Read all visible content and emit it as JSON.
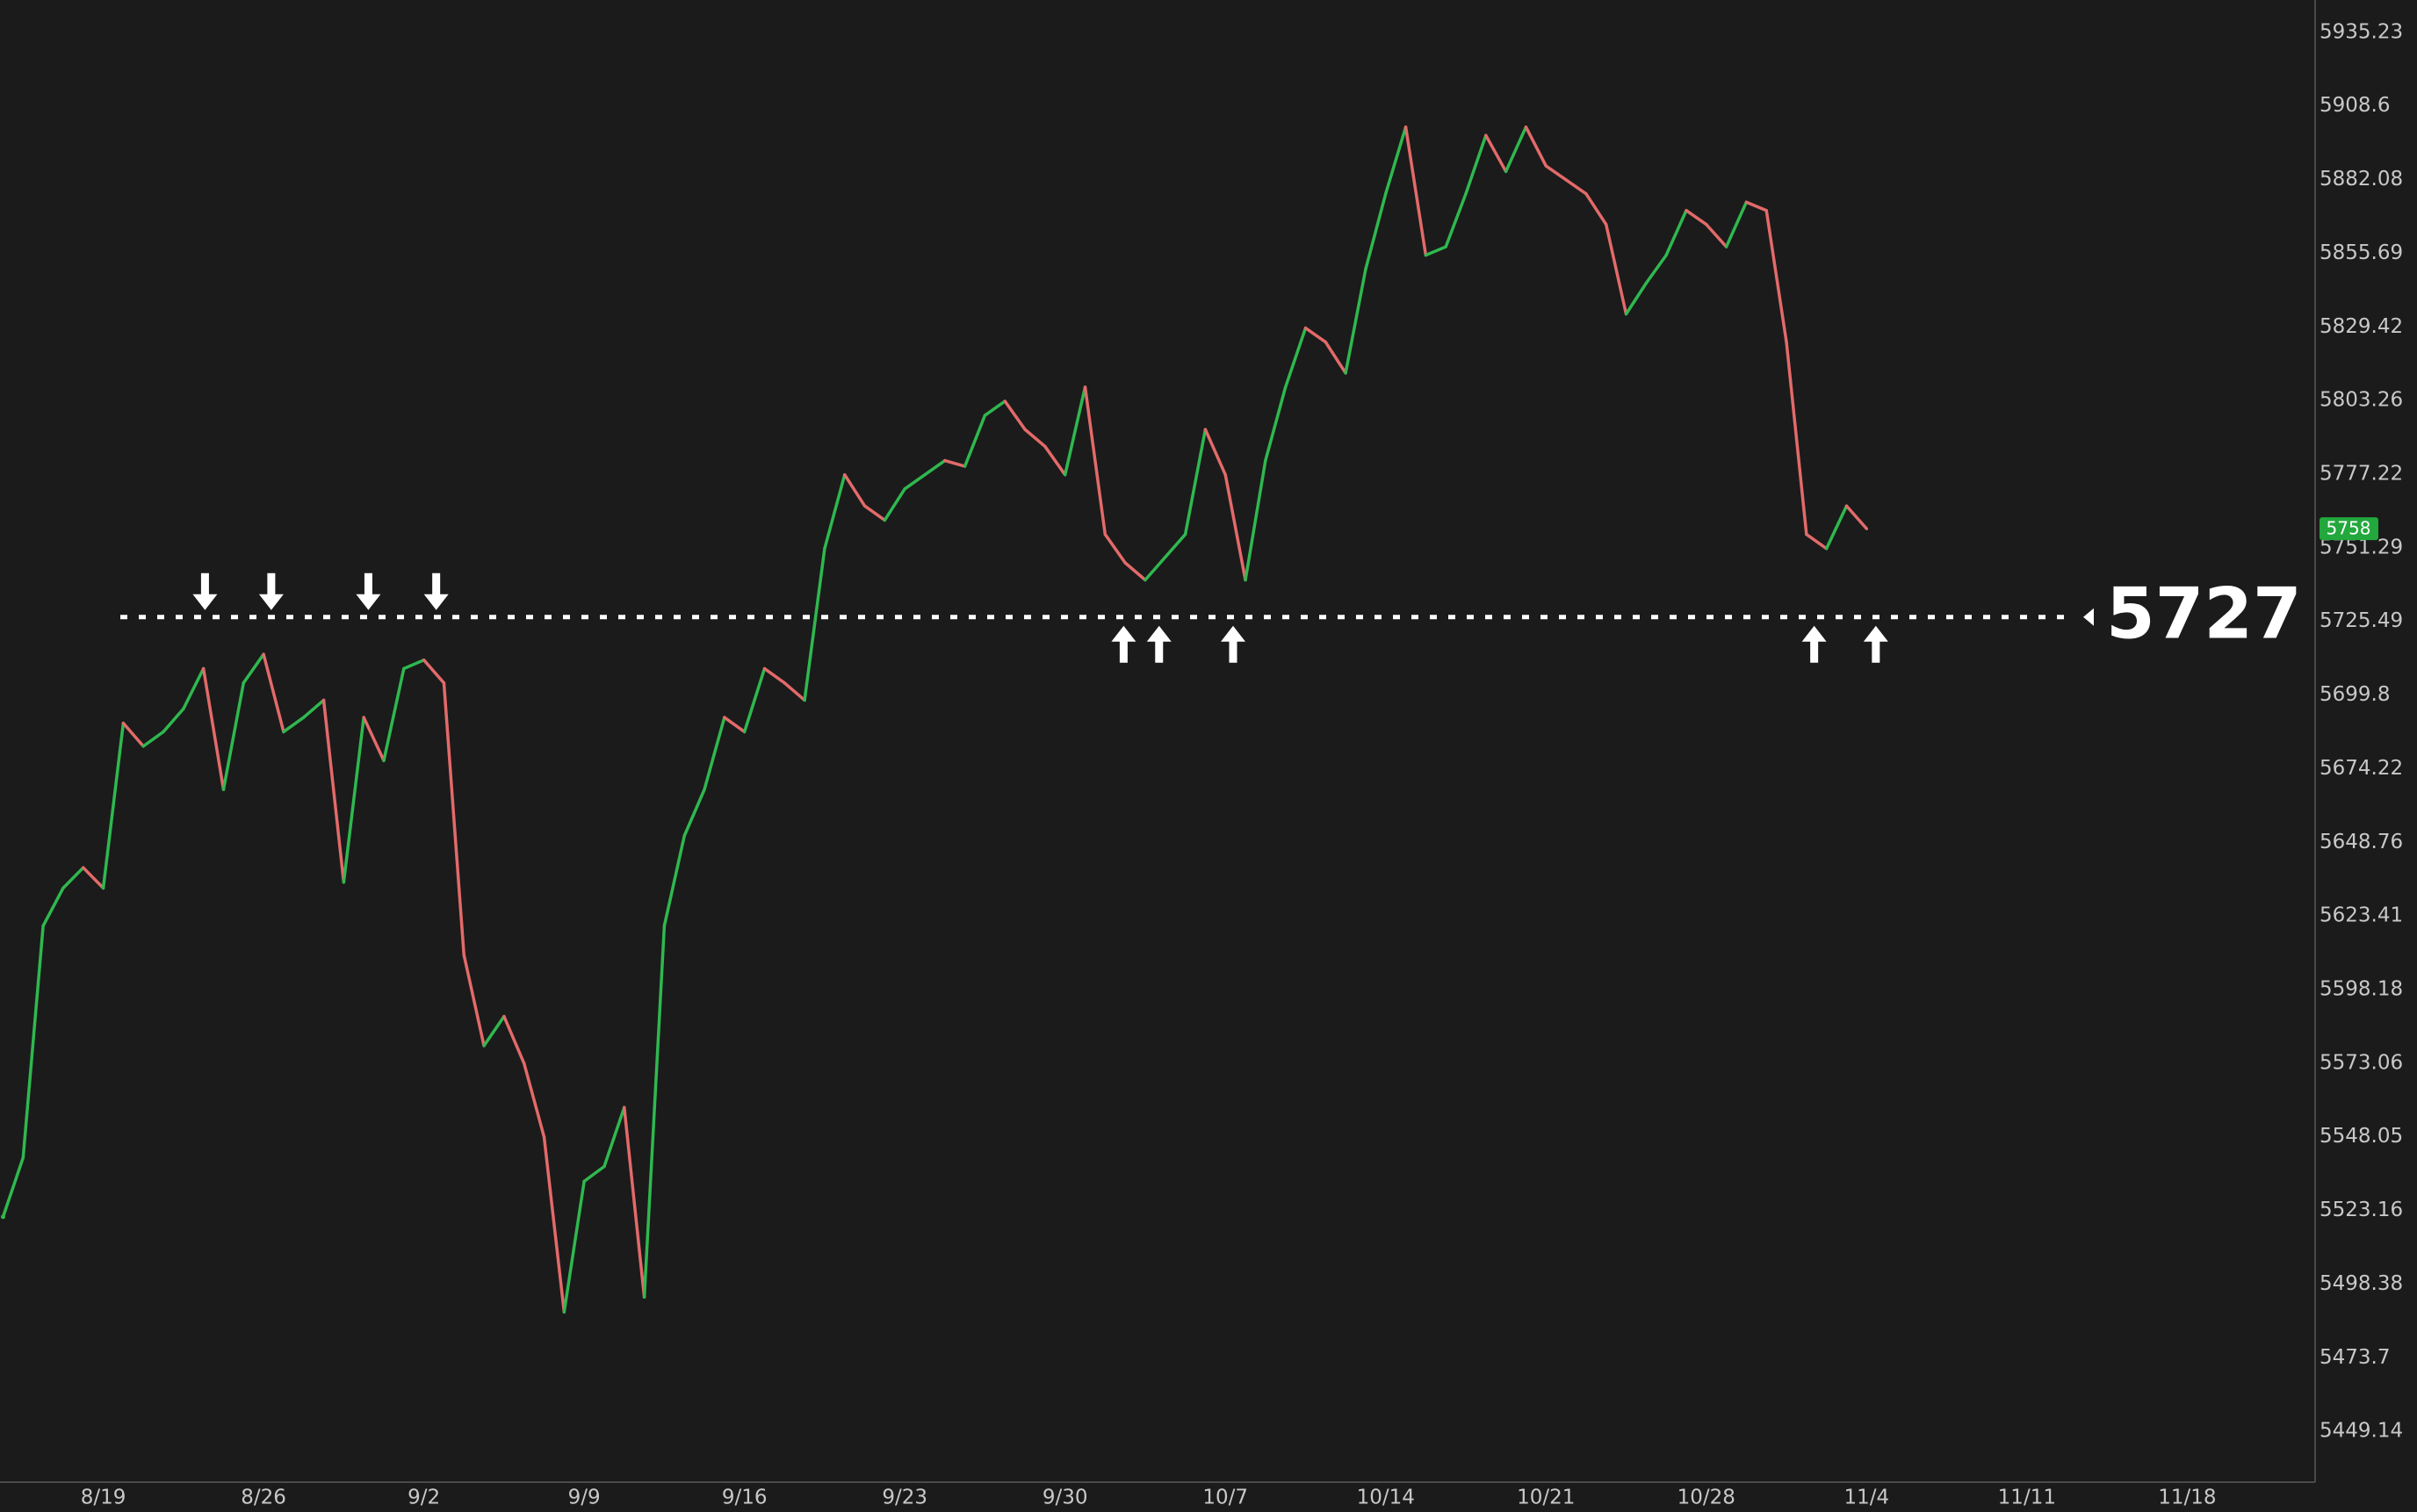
{
  "chart_data": {
    "type": "line",
    "categories": [
      null,
      null,
      null,
      null,
      null,
      "8/19",
      null,
      null,
      null,
      null,
      null,
      null,
      null,
      "8/26",
      null,
      null,
      null,
      null,
      null,
      null,
      null,
      "9/2",
      null,
      null,
      null,
      null,
      null,
      null,
      null,
      "9/9",
      null,
      null,
      null,
      null,
      null,
      null,
      null,
      "9/16",
      null,
      null,
      null,
      null,
      null,
      null,
      null,
      "9/23",
      null,
      null,
      null,
      null,
      null,
      null,
      null,
      "9/30",
      null,
      null,
      null,
      null,
      null,
      null,
      null,
      "10/7",
      null,
      null,
      null,
      null,
      null,
      null,
      null,
      "10/14",
      null,
      null,
      null,
      null,
      null,
      null,
      null,
      "10/21",
      null,
      null,
      null,
      null,
      null,
      null,
      null,
      "10/28",
      null,
      null,
      null,
      null,
      null,
      null,
      null,
      "11/4",
      null,
      null,
      null,
      null,
      null,
      null,
      null,
      "11/11",
      null,
      null,
      null,
      null,
      null,
      null,
      null,
      "11/18",
      null,
      null,
      null,
      null,
      null
    ],
    "values": [
      5521,
      5541,
      5620,
      5633,
      5640,
      5633,
      5690,
      5682,
      5687,
      5695,
      5709,
      5667,
      5704,
      5714,
      5687,
      5692,
      5698,
      5635,
      5692,
      5677,
      5709,
      5712,
      5704,
      5610,
      5579,
      5589,
      5573,
      5548,
      5489,
      5533,
      5538,
      5558,
      5494,
      5620,
      5651,
      5667,
      5692,
      5687,
      5709,
      5704,
      5698,
      5751,
      5777,
      5766,
      5761,
      5772,
      5777,
      5782,
      5780,
      5798,
      5803,
      5793,
      5787,
      5777,
      5808,
      5756,
      5746,
      5740,
      5748,
      5756,
      5793,
      5777,
      5740,
      5782,
      5808,
      5829,
      5824,
      5813,
      5850,
      5877,
      5901,
      5855,
      5858,
      5877,
      5898,
      5885,
      5901,
      5887,
      5882,
      5877,
      5866,
      5834,
      5845,
      5855,
      5871,
      5866,
      5858,
      5874,
      5871,
      5824,
      5756,
      5751,
      5766,
      5758,
      null,
      null,
      null,
      null,
      null,
      null,
      null,
      null,
      null,
      null,
      null,
      null,
      null,
      null,
      null,
      null,
      null,
      null,
      null,
      null,
      null
    ],
    "up_color": "#2fb84f",
    "down_color": "#e36a6a",
    "log_scale": true,
    "grid": false,
    "ylim": [
      5432.25,
      5946.97
    ],
    "yticks": [
      5449.14,
      5473.7,
      5498.38,
      5523.16,
      5548.05,
      5573.06,
      5598.18,
      5623.41,
      5648.76,
      5674.22,
      5699.8,
      5725.49,
      5751.29,
      5777.22,
      5803.26,
      5829.42,
      5855.69,
      5882.08,
      5908.6,
      5935.23
    ],
    "level": 5727,
    "last_price_color": "#22a83c"
  }
}
